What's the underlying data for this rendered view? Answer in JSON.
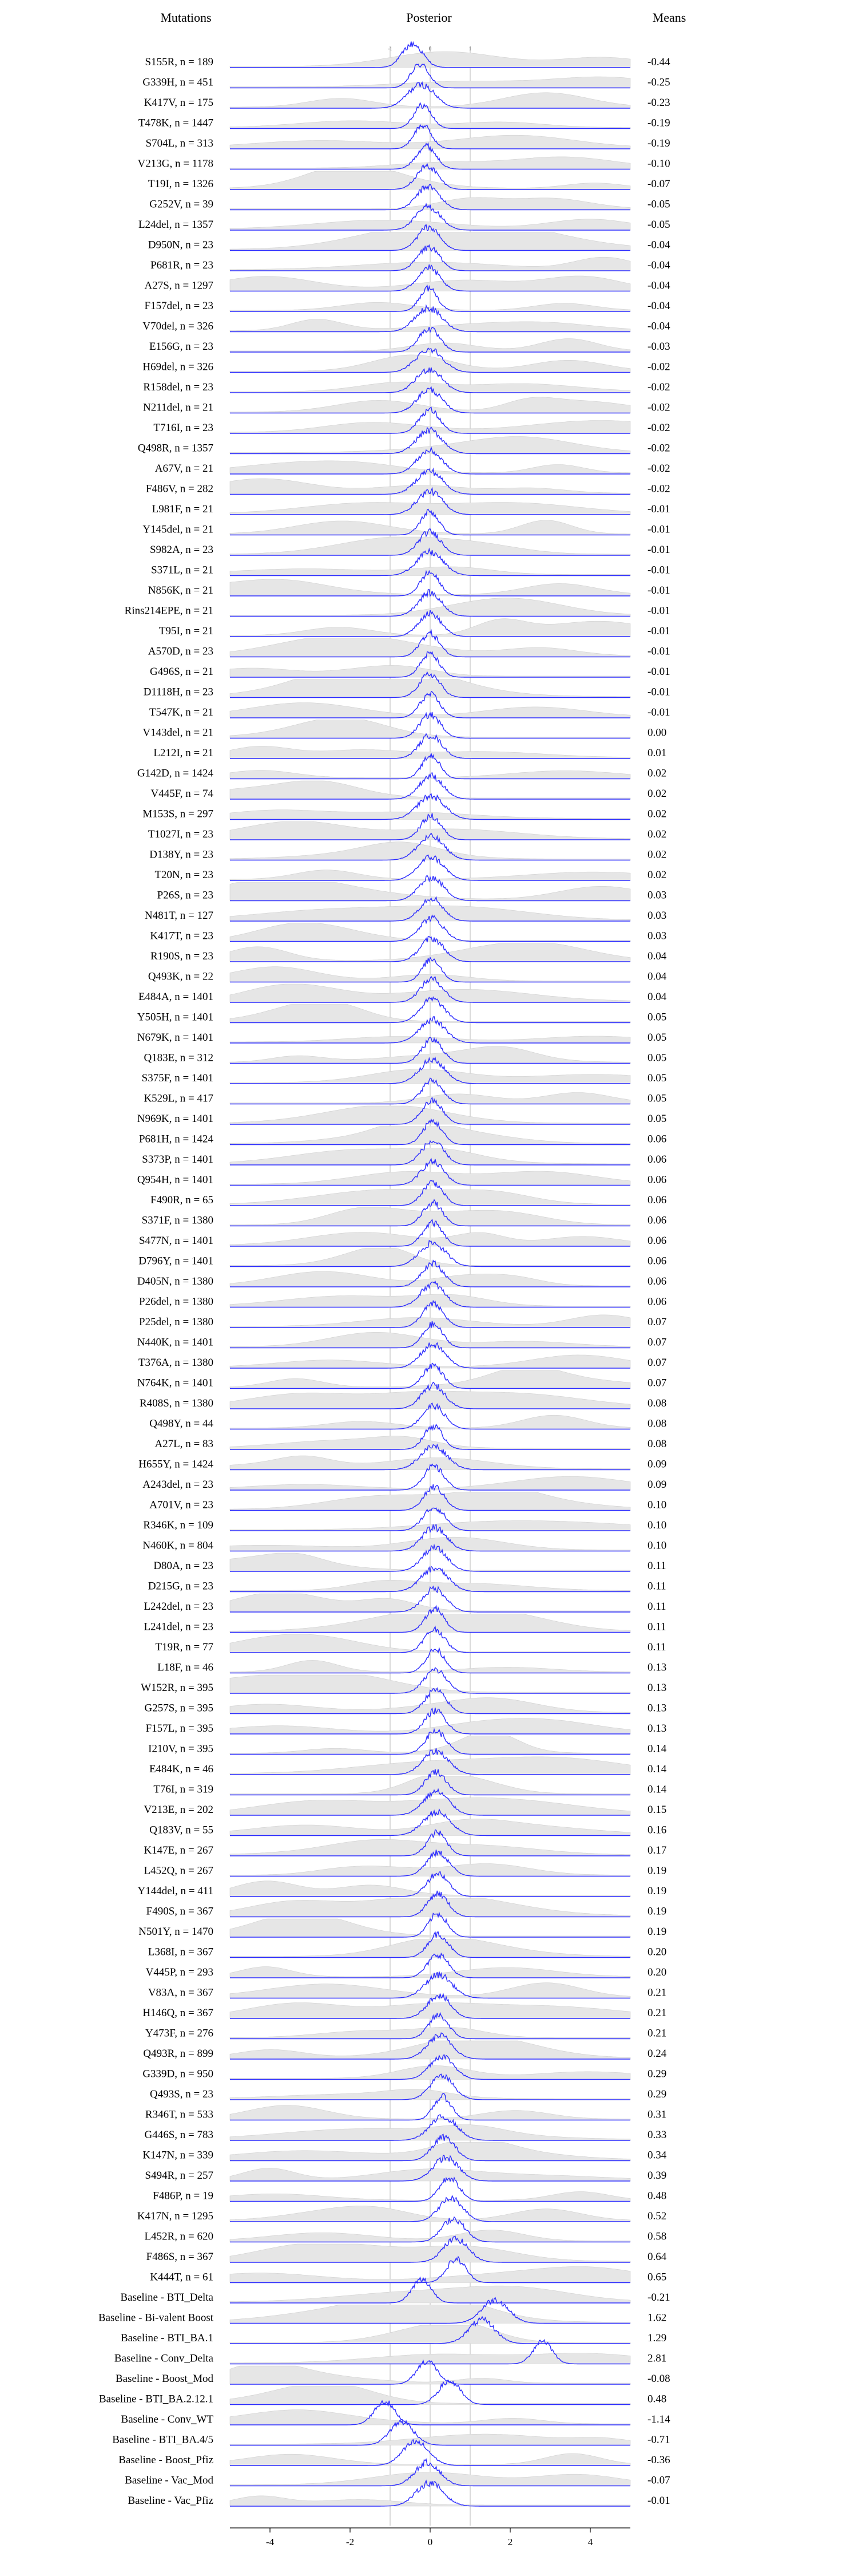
{
  "headers": {
    "mutations": "Mutations",
    "posterior": "Posterior",
    "means": "Means"
  },
  "chart_data": {
    "type": "ridgeline",
    "title": "",
    "xlabel": "",
    "ylabel": "",
    "xlim": [
      -5,
      5
    ],
    "xticks": [
      -4,
      -2,
      0,
      2,
      4
    ],
    "reference_lines": [
      -1,
      0,
      1
    ],
    "reference_line_labels": [
      "-1",
      "0",
      "1"
    ],
    "posterior_color": "#2b2bff",
    "background_density_color": "#e6e6e6",
    "rows": [
      {
        "label": "S155R,  n = 189",
        "mean": "-0.44"
      },
      {
        "label": "G339H,  n = 451",
        "mean": "-0.25"
      },
      {
        "label": "K417V,  n = 175",
        "mean": "-0.23"
      },
      {
        "label": "T478K,  n = 1447",
        "mean": "-0.19"
      },
      {
        "label": "S704L,  n = 313",
        "mean": "-0.19"
      },
      {
        "label": "V213G,  n = 1178",
        "mean": "-0.10"
      },
      {
        "label": "T19I,  n = 1326",
        "mean": "-0.07"
      },
      {
        "label": "G252V,  n = 39",
        "mean": "-0.05"
      },
      {
        "label": "L24del,  n = 1357",
        "mean": "-0.05"
      },
      {
        "label": "D950N,  n = 23",
        "mean": "-0.04"
      },
      {
        "label": "P681R,  n = 23",
        "mean": "-0.04"
      },
      {
        "label": "A27S,  n = 1297",
        "mean": "-0.04"
      },
      {
        "label": "F157del,  n = 23",
        "mean": "-0.04"
      },
      {
        "label": "V70del,  n = 326",
        "mean": "-0.04"
      },
      {
        "label": "E156G,  n = 23",
        "mean": "-0.03"
      },
      {
        "label": "H69del,  n = 326",
        "mean": "-0.02"
      },
      {
        "label": "R158del,  n = 23",
        "mean": "-0.02"
      },
      {
        "label": "N211del,  n = 21",
        "mean": "-0.02"
      },
      {
        "label": "T716I,  n = 23",
        "mean": "-0.02"
      },
      {
        "label": "Q498R,  n = 1357",
        "mean": "-0.02"
      },
      {
        "label": "A67V,  n = 21",
        "mean": "-0.02"
      },
      {
        "label": "F486V,  n = 282",
        "mean": "-0.02"
      },
      {
        "label": "L981F,  n = 21",
        "mean": "-0.01"
      },
      {
        "label": "Y145del,  n = 21",
        "mean": "-0.01"
      },
      {
        "label": "S982A,  n = 23",
        "mean": "-0.01"
      },
      {
        "label": "S371L,  n = 21",
        "mean": "-0.01"
      },
      {
        "label": "N856K,  n = 21",
        "mean": "-0.01"
      },
      {
        "label": "Rins214EPE,  n = 21",
        "mean": "-0.01"
      },
      {
        "label": "T95I,  n = 21",
        "mean": "-0.01"
      },
      {
        "label": "A570D,  n = 23",
        "mean": "-0.01"
      },
      {
        "label": "G496S,  n = 21",
        "mean": "-0.01"
      },
      {
        "label": "D1118H,  n = 23",
        "mean": "-0.01"
      },
      {
        "label": "T547K,  n = 21",
        "mean": "-0.01"
      },
      {
        "label": "V143del,  n = 21",
        "mean": "0.00"
      },
      {
        "label": "L212I,  n = 21",
        "mean": "0.01"
      },
      {
        "label": "G142D,  n = 1424",
        "mean": "0.02"
      },
      {
        "label": "V445F,  n = 74",
        "mean": "0.02"
      },
      {
        "label": "M153S,  n = 297",
        "mean": "0.02"
      },
      {
        "label": "T1027I,  n = 23",
        "mean": "0.02"
      },
      {
        "label": "D138Y,  n = 23",
        "mean": "0.02"
      },
      {
        "label": "T20N,  n = 23",
        "mean": "0.02"
      },
      {
        "label": "P26S,  n = 23",
        "mean": "0.03"
      },
      {
        "label": "N481T,  n = 127",
        "mean": "0.03"
      },
      {
        "label": "K417T,  n = 23",
        "mean": "0.03"
      },
      {
        "label": "R190S,  n = 23",
        "mean": "0.04"
      },
      {
        "label": "Q493K,  n = 22",
        "mean": "0.04"
      },
      {
        "label": "E484A,  n = 1401",
        "mean": "0.04"
      },
      {
        "label": "Y505H,  n = 1401",
        "mean": "0.05"
      },
      {
        "label": "N679K,  n = 1401",
        "mean": "0.05"
      },
      {
        "label": "Q183E,  n = 312",
        "mean": "0.05"
      },
      {
        "label": "S375F,  n = 1401",
        "mean": "0.05"
      },
      {
        "label": "K529L,  n = 417",
        "mean": "0.05"
      },
      {
        "label": "N969K,  n = 1401",
        "mean": "0.05"
      },
      {
        "label": "P681H,  n = 1424",
        "mean": "0.06"
      },
      {
        "label": "S373P,  n = 1401",
        "mean": "0.06"
      },
      {
        "label": "Q954H,  n = 1401",
        "mean": "0.06"
      },
      {
        "label": "F490R,  n = 65",
        "mean": "0.06"
      },
      {
        "label": "S371F,  n = 1380",
        "mean": "0.06"
      },
      {
        "label": "S477N,  n = 1401",
        "mean": "0.06"
      },
      {
        "label": "D796Y,  n = 1401",
        "mean": "0.06"
      },
      {
        "label": "D405N,  n = 1380",
        "mean": "0.06"
      },
      {
        "label": "P26del,  n = 1380",
        "mean": "0.06"
      },
      {
        "label": "P25del,  n = 1380",
        "mean": "0.07"
      },
      {
        "label": "N440K,  n = 1401",
        "mean": "0.07"
      },
      {
        "label": "T376A,  n = 1380",
        "mean": "0.07"
      },
      {
        "label": "N764K,  n = 1401",
        "mean": "0.07"
      },
      {
        "label": "R408S,  n = 1380",
        "mean": "0.08"
      },
      {
        "label": "Q498Y,  n = 44",
        "mean": "0.08"
      },
      {
        "label": "A27L,  n = 83",
        "mean": "0.08"
      },
      {
        "label": "H655Y,  n = 1424",
        "mean": "0.09"
      },
      {
        "label": "A243del,  n = 23",
        "mean": "0.09"
      },
      {
        "label": "A701V,  n = 23",
        "mean": "0.10"
      },
      {
        "label": "R346K,  n = 109",
        "mean": "0.10"
      },
      {
        "label": "N460K,  n = 804",
        "mean": "0.10"
      },
      {
        "label": "D80A,  n = 23",
        "mean": "0.11"
      },
      {
        "label": "D215G,  n = 23",
        "mean": "0.11"
      },
      {
        "label": "L242del,  n = 23",
        "mean": "0.11"
      },
      {
        "label": "L241del,  n = 23",
        "mean": "0.11"
      },
      {
        "label": "T19R,  n = 77",
        "mean": "0.11"
      },
      {
        "label": "L18F,  n = 46",
        "mean": "0.13"
      },
      {
        "label": "W152R,  n = 395",
        "mean": "0.13"
      },
      {
        "label": "G257S,  n = 395",
        "mean": "0.13"
      },
      {
        "label": "F157L,  n = 395",
        "mean": "0.13"
      },
      {
        "label": "I210V,  n = 395",
        "mean": "0.14"
      },
      {
        "label": "E484K,  n = 46",
        "mean": "0.14"
      },
      {
        "label": "T76I,  n = 319",
        "mean": "0.14"
      },
      {
        "label": "V213E,  n = 202",
        "mean": "0.15"
      },
      {
        "label": "Q183V,  n = 55",
        "mean": "0.16"
      },
      {
        "label": "K147E,  n = 267",
        "mean": "0.17"
      },
      {
        "label": "L452Q,  n = 267",
        "mean": "0.19"
      },
      {
        "label": "Y144del,  n = 411",
        "mean": "0.19"
      },
      {
        "label": "F490S,  n = 367",
        "mean": "0.19"
      },
      {
        "label": "N501Y,  n = 1470",
        "mean": "0.19"
      },
      {
        "label": "L368I,  n = 367",
        "mean": "0.20"
      },
      {
        "label": "V445P,  n = 293",
        "mean": "0.20"
      },
      {
        "label": "V83A,  n = 367",
        "mean": "0.21"
      },
      {
        "label": "H146Q,  n = 367",
        "mean": "0.21"
      },
      {
        "label": "Y473F,  n = 276",
        "mean": "0.21"
      },
      {
        "label": "Q493R,  n = 899",
        "mean": "0.24"
      },
      {
        "label": "G339D,  n = 950",
        "mean": "0.29"
      },
      {
        "label": "Q493S,  n = 23",
        "mean": "0.29"
      },
      {
        "label": "R346T,  n = 533",
        "mean": "0.31"
      },
      {
        "label": "G446S,  n = 783",
        "mean": "0.33"
      },
      {
        "label": "K147N,  n = 339",
        "mean": "0.34"
      },
      {
        "label": "S494R,  n = 257",
        "mean": "0.39"
      },
      {
        "label": "F486P,  n = 19",
        "mean": "0.48"
      },
      {
        "label": "K417N,  n = 1295",
        "mean": "0.52"
      },
      {
        "label": "L452R,  n = 620",
        "mean": "0.58"
      },
      {
        "label": "F486S,  n = 367",
        "mean": "0.64"
      },
      {
        "label": "K444T,  n = 61",
        "mean": "0.65"
      },
      {
        "label": "Baseline - BTI_Delta",
        "mean": "-0.21"
      },
      {
        "label": "Baseline - Bi-valent Boost",
        "mean": "1.62"
      },
      {
        "label": "Baseline - BTI_BA.1",
        "mean": "1.29"
      },
      {
        "label": "Baseline - Conv_Delta",
        "mean": "2.81"
      },
      {
        "label": "Baseline - Boost_Mod",
        "mean": "-0.08"
      },
      {
        "label": "Baseline - BTI_BA.2.12.1",
        "mean": "0.48"
      },
      {
        "label": "Baseline - Conv_WT",
        "mean": "-1.14"
      },
      {
        "label": "Baseline - BTI_BA.4/5",
        "mean": "-0.71"
      },
      {
        "label": "Baseline - Boost_Pfiz",
        "mean": "-0.36"
      },
      {
        "label": "Baseline - Vac_Mod",
        "mean": "-0.07"
      },
      {
        "label": "Baseline - Vac_Pfiz",
        "mean": "-0.01"
      }
    ]
  }
}
